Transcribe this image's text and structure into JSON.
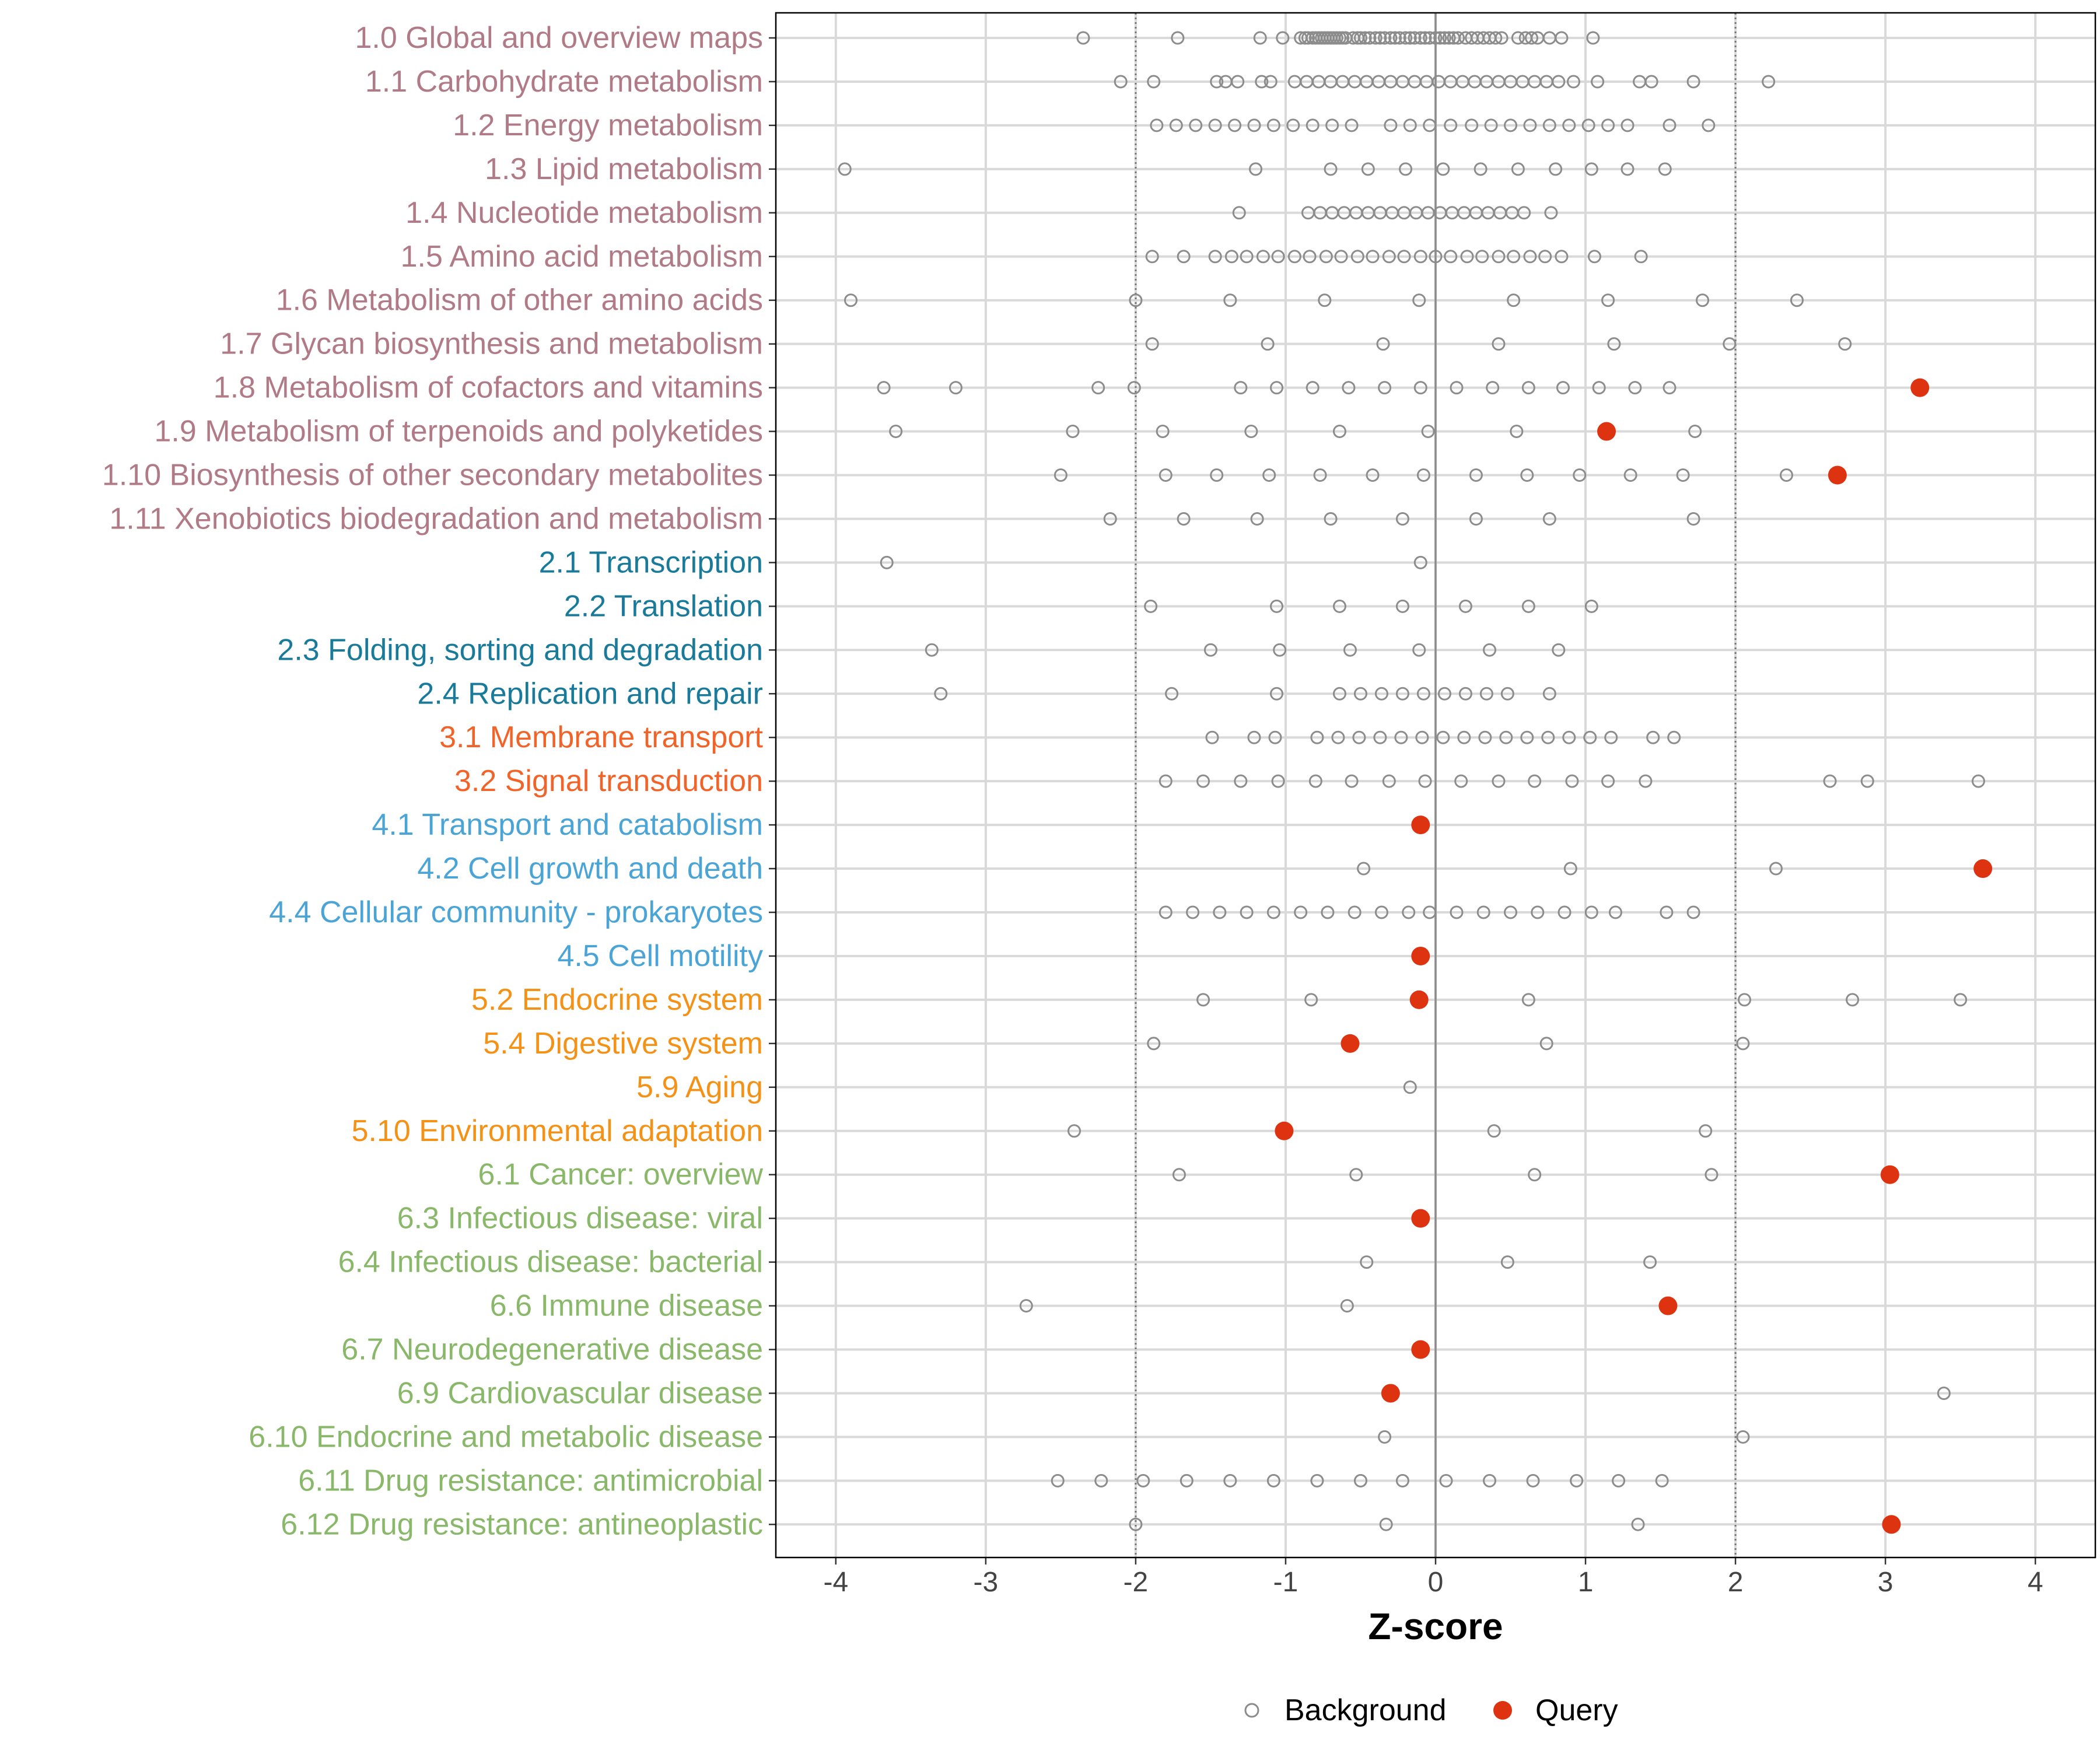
{
  "chart_data": {
    "type": "scatter",
    "xlabel": "Z-score",
    "xlim": [
      -4.4,
      4.4
    ],
    "xticks": [
      -4,
      -3,
      -2,
      -1,
      0,
      1,
      2,
      3,
      4
    ],
    "xtick_labels": [
      "-4",
      "-3",
      "-2",
      "-1",
      "0",
      "1",
      "2",
      "3",
      "4"
    ],
    "reference_lines": {
      "solid": [
        0
      ],
      "dotted": [
        -2,
        2
      ]
    },
    "group_colors": {
      "metabolism": "#B07A86",
      "genetic": "#1A7A9A",
      "environmental": "#F0642A",
      "cellular": "#4AA4D6",
      "organismal": "#F39217",
      "disease": "#8AB86A"
    },
    "marker_colors": {
      "background": "#8c8c8c",
      "query": "#DD3311"
    },
    "legend": {
      "position": "bottom",
      "entries": [
        {
          "key": "background",
          "label": "Background"
        },
        {
          "key": "query",
          "label": "Query"
        }
      ]
    },
    "categories": [
      {
        "label": "1.0 Global and overview maps",
        "group": "metabolism",
        "background": [
          -2.35,
          -1.72,
          -1.17,
          -1.02,
          -0.9,
          -0.87,
          -0.85,
          -0.82,
          -0.8,
          -0.78,
          -0.76,
          -0.74,
          -0.72,
          -0.7,
          -0.68,
          -0.66,
          -0.64,
          -0.62,
          -0.6,
          -0.55,
          -0.52,
          -0.5,
          -0.47,
          -0.44,
          -0.4,
          -0.37,
          -0.34,
          -0.3,
          -0.27,
          -0.24,
          -0.2,
          -0.17,
          -0.14,
          -0.1,
          -0.07,
          -0.04,
          0.0,
          0.03,
          0.06,
          0.09,
          0.12,
          0.15,
          0.2,
          0.24,
          0.28,
          0.32,
          0.36,
          0.4,
          0.44,
          0.55,
          0.6,
          0.64,
          0.68,
          0.76,
          0.84,
          1.05
        ],
        "query": []
      },
      {
        "label": "1.1 Carbohydrate metabolism",
        "group": "metabolism",
        "background": [
          -2.1,
          -1.88,
          -1.46,
          -1.4,
          -1.32,
          -1.16,
          -1.1,
          -0.94,
          -0.86,
          -0.78,
          -0.7,
          -0.62,
          -0.54,
          -0.46,
          -0.38,
          -0.3,
          -0.22,
          -0.14,
          -0.06,
          0.02,
          0.1,
          0.18,
          0.26,
          0.34,
          0.42,
          0.5,
          0.58,
          0.66,
          0.74,
          0.82,
          0.92,
          1.08,
          1.36,
          1.44,
          1.72,
          2.22
        ],
        "query": []
      },
      {
        "label": "1.2 Energy metabolism",
        "group": "metabolism",
        "background": [
          -1.86,
          -1.73,
          -1.6,
          -1.47,
          -1.34,
          -1.21,
          -1.08,
          -0.95,
          -0.82,
          -0.69,
          -0.56,
          -0.3,
          -0.17,
          -0.04,
          0.1,
          0.24,
          0.37,
          0.5,
          0.63,
          0.76,
          0.89,
          1.02,
          1.15,
          1.28,
          1.56,
          1.82
        ],
        "query": []
      },
      {
        "label": "1.3 Lipid metabolism",
        "group": "metabolism",
        "background": [
          -3.94,
          -1.2,
          -0.7,
          -0.45,
          -0.2,
          0.05,
          0.3,
          0.55,
          0.8,
          1.04,
          1.28,
          1.53
        ],
        "query": []
      },
      {
        "label": "1.4 Nucleotide metabolism",
        "group": "metabolism",
        "background": [
          -1.31,
          -0.85,
          -0.77,
          -0.69,
          -0.61,
          -0.53,
          -0.45,
          -0.37,
          -0.29,
          -0.21,
          -0.13,
          -0.05,
          0.03,
          0.11,
          0.19,
          0.27,
          0.35,
          0.43,
          0.51,
          0.59,
          0.77
        ],
        "query": []
      },
      {
        "label": "1.5 Amino acid metabolism",
        "group": "metabolism",
        "background": [
          -1.89,
          -1.68,
          -1.47,
          -1.36,
          -1.26,
          -1.15,
          -1.05,
          -0.94,
          -0.84,
          -0.73,
          -0.63,
          -0.52,
          -0.42,
          -0.31,
          -0.21,
          -0.1,
          0.0,
          0.1,
          0.21,
          0.31,
          0.42,
          0.52,
          0.63,
          0.73,
          0.84,
          1.06,
          1.37
        ],
        "query": []
      },
      {
        "label": "1.6 Metabolism of other amino acids",
        "group": "metabolism",
        "background": [
          -3.9,
          -2.0,
          -1.37,
          -0.74,
          -0.11,
          0.52,
          1.15,
          1.78,
          2.41
        ],
        "query": []
      },
      {
        "label": "1.7 Glycan biosynthesis and metabolism",
        "group": "metabolism",
        "background": [
          -1.89,
          -1.12,
          -0.35,
          0.42,
          1.19,
          1.96,
          2.73
        ],
        "query": []
      },
      {
        "label": "1.8 Metabolism of cofactors and vitamins",
        "group": "metabolism",
        "background": [
          -3.68,
          -3.2,
          -2.25,
          -2.01,
          -1.3,
          -1.06,
          -0.82,
          -0.58,
          -0.34,
          -0.1,
          0.14,
          0.38,
          0.62,
          0.85,
          1.09,
          1.33,
          1.56
        ],
        "query": [
          3.23
        ]
      },
      {
        "label": "1.9 Metabolism of terpenoids and polyketides",
        "group": "metabolism",
        "background": [
          -3.6,
          -2.42,
          -1.82,
          -1.23,
          -0.64,
          -0.05,
          0.54,
          1.73
        ],
        "query": [
          1.14
        ]
      },
      {
        "label": "1.10 Biosynthesis of other secondary metabolites",
        "group": "metabolism",
        "background": [
          -2.5,
          -1.8,
          -1.46,
          -1.11,
          -0.77,
          -0.42,
          -0.08,
          0.27,
          0.61,
          0.96,
          1.3,
          1.65,
          2.34
        ],
        "query": [
          2.68
        ]
      },
      {
        "label": "1.11 Xenobiotics biodegradation and metabolism",
        "group": "metabolism",
        "background": [
          -2.17,
          -1.68,
          -1.19,
          -0.7,
          -0.22,
          0.27,
          0.76,
          1.72
        ],
        "query": []
      },
      {
        "label": "2.1 Transcription",
        "group": "genetic",
        "background": [
          -3.66,
          -0.1
        ],
        "query": []
      },
      {
        "label": "2.2 Translation",
        "group": "genetic",
        "background": [
          -1.9,
          -1.06,
          -0.64,
          -0.22,
          0.2,
          0.62,
          1.04
        ],
        "query": []
      },
      {
        "label": "2.3 Folding, sorting and degradation",
        "group": "genetic",
        "background": [
          -3.36,
          -1.5,
          -1.04,
          -0.57,
          -0.11,
          0.36,
          0.82
        ],
        "query": []
      },
      {
        "label": "2.4 Replication and repair",
        "group": "genetic",
        "background": [
          -3.3,
          -1.76,
          -1.06,
          -0.64,
          -0.5,
          -0.36,
          -0.22,
          -0.08,
          0.06,
          0.2,
          0.34,
          0.48,
          0.76
        ],
        "query": []
      },
      {
        "label": "3.1 Membrane transport",
        "group": "environmental",
        "background": [
          -1.49,
          -1.21,
          -1.07,
          -0.79,
          -0.65,
          -0.51,
          -0.37,
          -0.23,
          -0.09,
          0.05,
          0.19,
          0.33,
          0.47,
          0.61,
          0.75,
          0.89,
          1.03,
          1.17,
          1.45,
          1.59
        ],
        "query": []
      },
      {
        "label": "3.2 Signal transduction",
        "group": "environmental",
        "background": [
          -1.8,
          -1.55,
          -1.3,
          -1.05,
          -0.8,
          -0.56,
          -0.31,
          -0.07,
          0.17,
          0.42,
          0.66,
          0.91,
          1.15,
          1.4,
          2.63,
          2.88,
          3.62
        ],
        "query": []
      },
      {
        "label": "4.1 Transport and catabolism",
        "group": "cellular",
        "background": [],
        "query": [
          -0.1
        ]
      },
      {
        "label": "4.2 Cell growth and death",
        "group": "cellular",
        "background": [
          -0.48,
          0.9,
          2.27
        ],
        "query": [
          3.65
        ]
      },
      {
        "label": "4.4 Cellular community - prokaryotes",
        "group": "cellular",
        "background": [
          -1.8,
          -1.62,
          -1.44,
          -1.26,
          -1.08,
          -0.9,
          -0.72,
          -0.54,
          -0.36,
          -0.18,
          -0.04,
          0.14,
          0.32,
          0.5,
          0.68,
          0.86,
          1.04,
          1.2,
          1.54,
          1.72
        ],
        "query": []
      },
      {
        "label": "4.5 Cell motility",
        "group": "cellular",
        "background": [],
        "query": [
          -0.1
        ]
      },
      {
        "label": "5.2 Endocrine system",
        "group": "organismal",
        "background": [
          -1.55,
          -0.83,
          0.62,
          2.06,
          2.78,
          3.5
        ],
        "query": [
          -0.11
        ]
      },
      {
        "label": "5.4 Digestive system",
        "group": "organismal",
        "background": [
          -1.88,
          0.74,
          2.05
        ],
        "query": [
          -0.57
        ]
      },
      {
        "label": "5.9 Aging",
        "group": "organismal",
        "background": [
          -0.17
        ],
        "query": []
      },
      {
        "label": "5.10 Environmental adaptation",
        "group": "organismal",
        "background": [
          -2.41,
          0.39,
          1.8
        ],
        "query": [
          -1.01
        ]
      },
      {
        "label": "6.1 Cancer: overview",
        "group": "disease",
        "background": [
          -1.71,
          -0.53,
          0.66,
          1.84
        ],
        "query": [
          3.03
        ]
      },
      {
        "label": "6.3 Infectious disease: viral",
        "group": "disease",
        "background": [],
        "query": [
          -0.1
        ]
      },
      {
        "label": "6.4 Infectious disease: bacterial",
        "group": "disease",
        "background": [
          -0.46,
          0.48,
          1.43
        ],
        "query": []
      },
      {
        "label": "6.6 Immune disease",
        "group": "disease",
        "background": [
          -2.73,
          -0.59
        ],
        "query": [
          1.55
        ]
      },
      {
        "label": "6.7 Neurodegenerative disease",
        "group": "disease",
        "background": [],
        "query": [
          -0.1
        ]
      },
      {
        "label": "6.9 Cardiovascular disease",
        "group": "disease",
        "background": [
          3.39
        ],
        "query": [
          -0.3
        ]
      },
      {
        "label": "6.10 Endocrine and metabolic disease",
        "group": "disease",
        "background": [
          -0.34,
          2.05
        ],
        "query": []
      },
      {
        "label": "6.11 Drug resistance: antimicrobial",
        "group": "disease",
        "background": [
          -2.52,
          -2.23,
          -1.95,
          -1.66,
          -1.37,
          -1.08,
          -0.79,
          -0.5,
          -0.22,
          0.07,
          0.36,
          0.65,
          0.94,
          1.22,
          1.51
        ],
        "query": []
      },
      {
        "label": "6.12 Drug resistance: antineoplastic",
        "group": "disease",
        "background": [
          -2.0,
          -0.33,
          1.35
        ],
        "query": [
          3.04
        ]
      }
    ]
  }
}
